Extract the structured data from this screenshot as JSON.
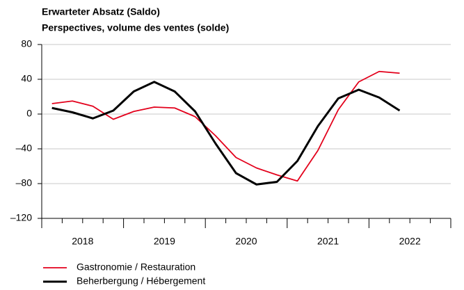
{
  "chart_data": {
    "type": "line",
    "title": "Erwarteter Absatz (Saldo)",
    "subtitle": "Perspectives, volume des ventes (solde)",
    "x": [
      2018.125,
      2018.375,
      2018.625,
      2018.875,
      2019.125,
      2019.375,
      2019.625,
      2019.875,
      2020.125,
      2020.375,
      2020.625,
      2020.875,
      2021.125,
      2021.375,
      2021.625,
      2021.875,
      2022.125,
      2022.375
    ],
    "xlim": [
      2018,
      2023
    ],
    "xticks": [
      2018,
      2019,
      2020,
      2021,
      2022,
      2023
    ],
    "year_labels": [
      2018,
      2019,
      2020,
      2021,
      2022
    ],
    "ylim": [
      -120,
      80
    ],
    "yticks": [
      80,
      40,
      0,
      {
        "value": -40,
        "label": "–40"
      },
      {
        "value": -80,
        "label": "–80"
      },
      {
        "value": -120,
        "label": "–120"
      }
    ],
    "grid": true,
    "series": [
      {
        "name": "Gastronomie / Restauration",
        "color": "#e3001b",
        "values": [
          12,
          15,
          9,
          -6,
          3,
          8,
          7,
          -3,
          -25,
          -50,
          -62,
          -70,
          -77,
          -42,
          5,
          37,
          49,
          47
        ]
      },
      {
        "name": "Beherbergung / Hébergement",
        "color": "#000000",
        "values": [
          7,
          2,
          -5,
          4,
          26,
          37,
          26,
          3,
          -34,
          -68,
          -81,
          -78,
          -54,
          -14,
          18,
          28,
          19,
          4
        ]
      }
    ]
  }
}
